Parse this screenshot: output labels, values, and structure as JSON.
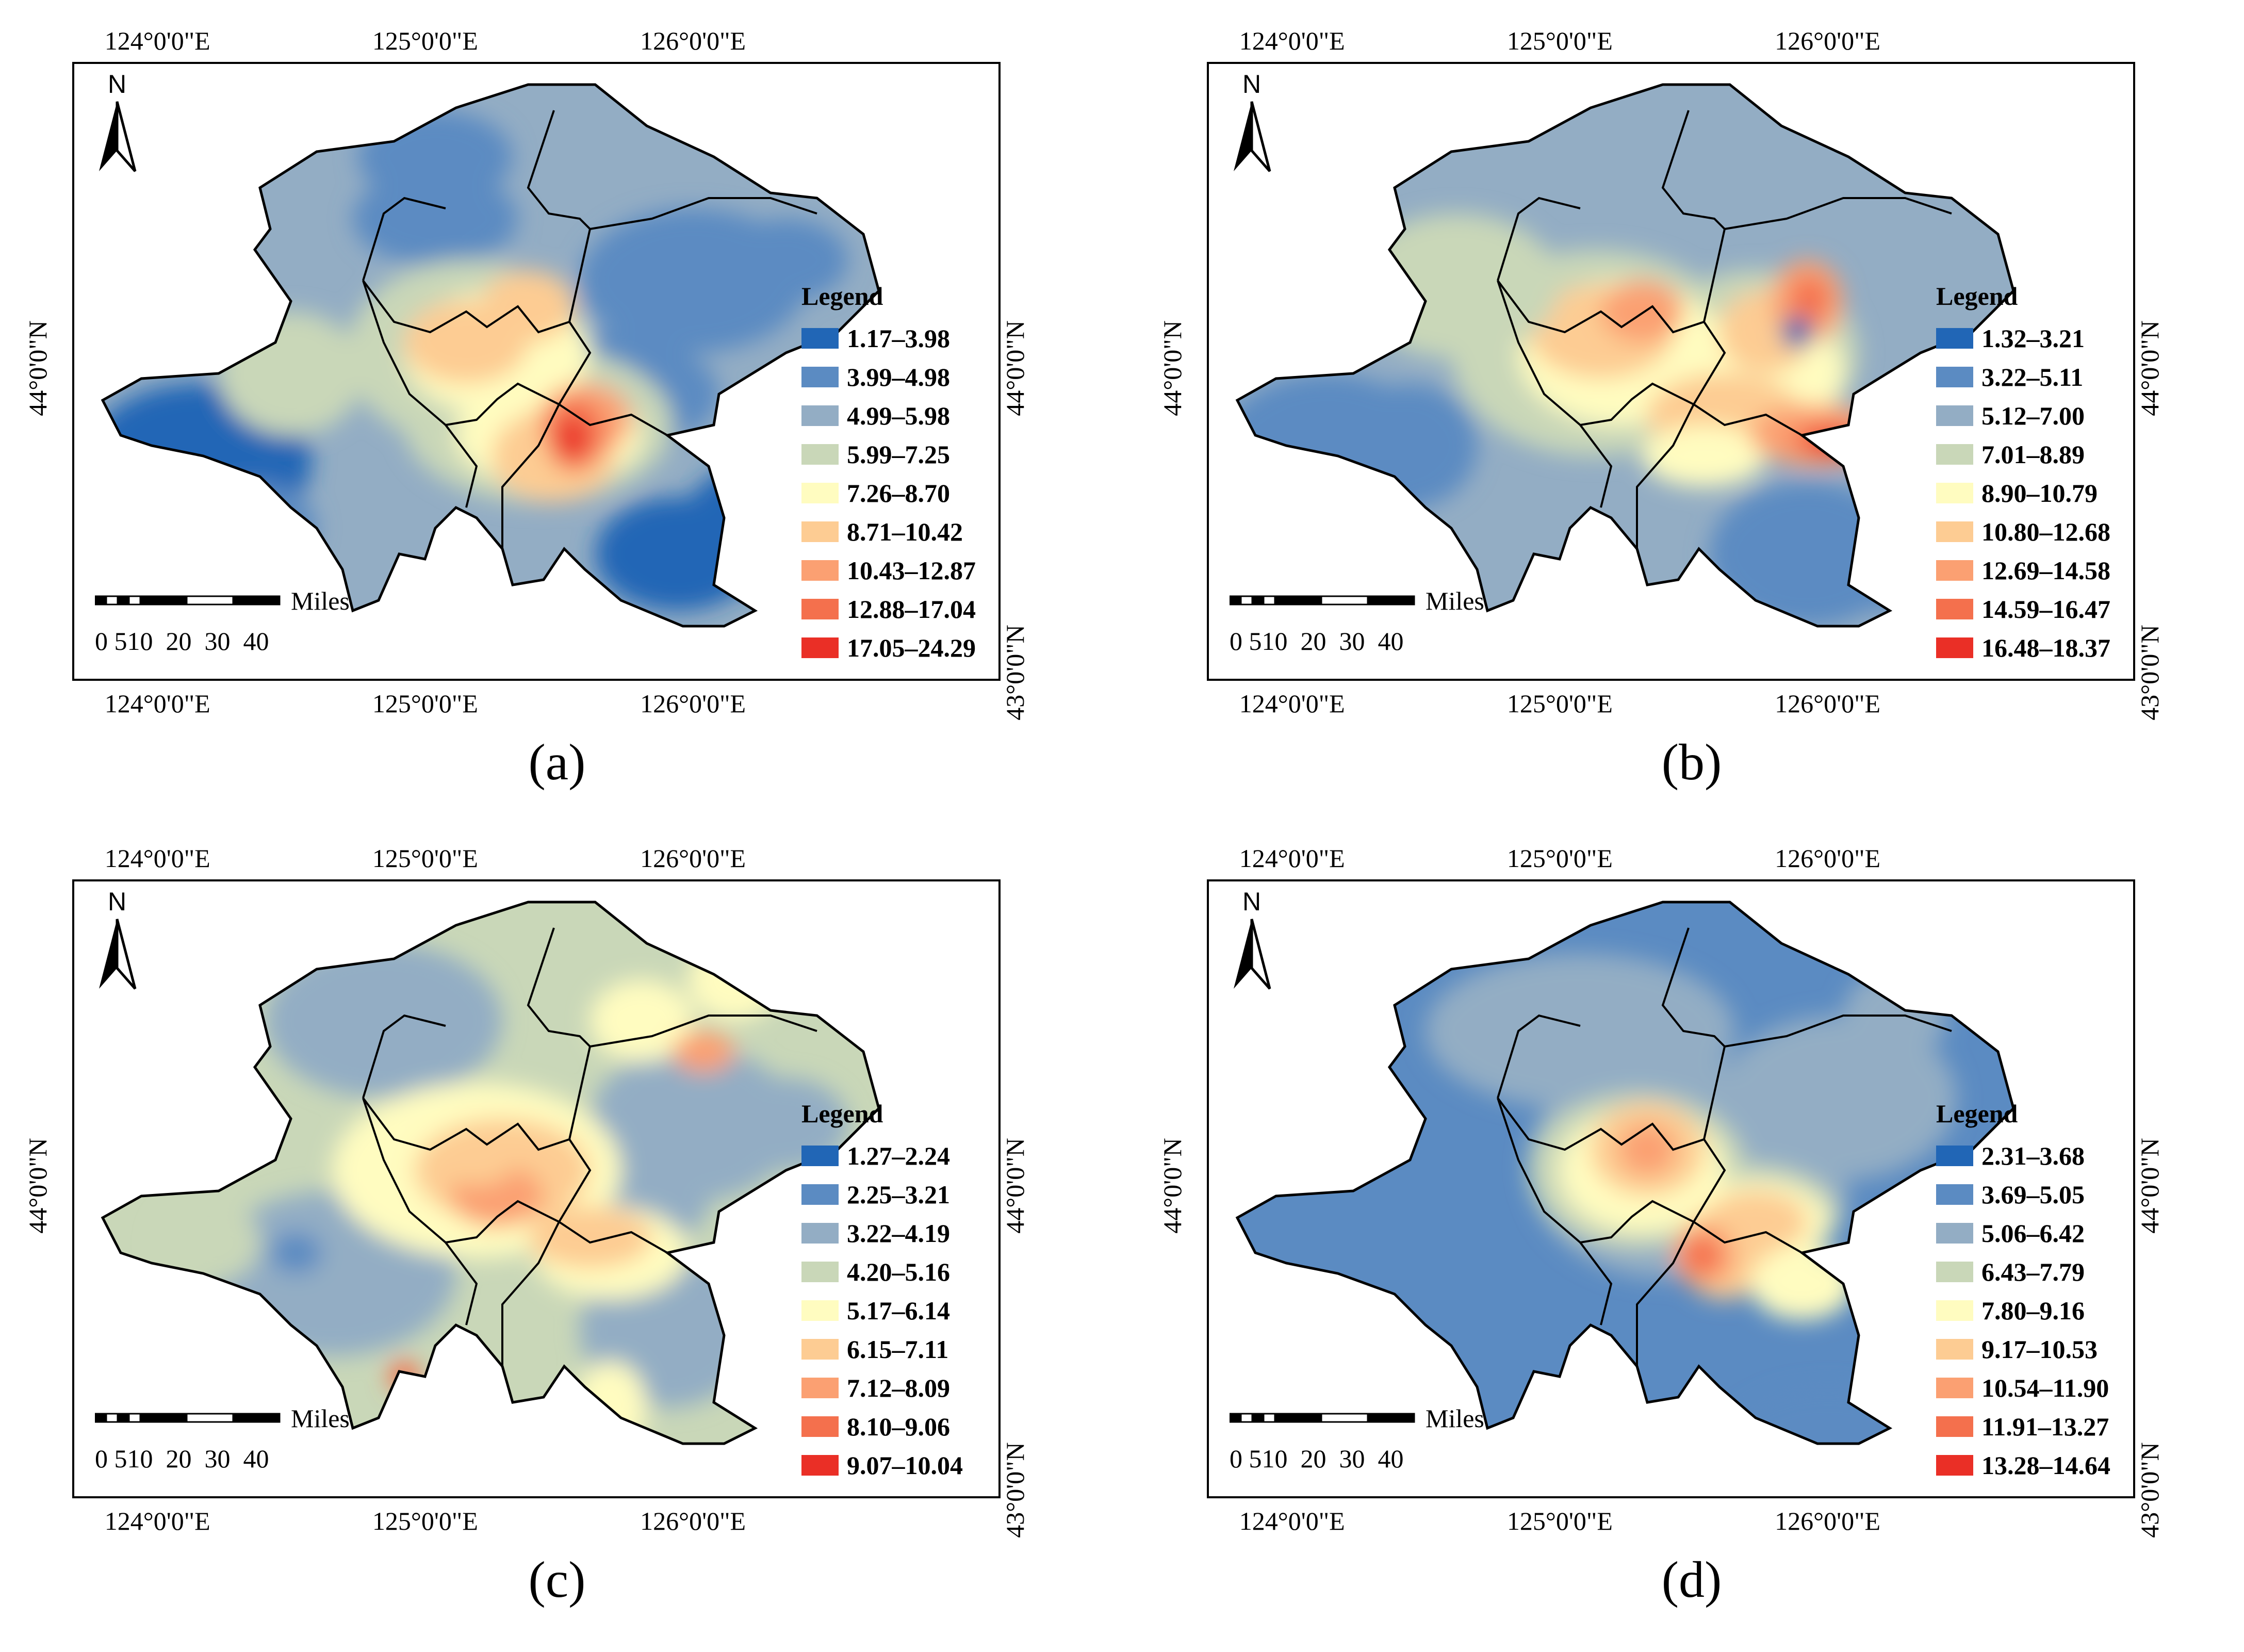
{
  "axes": {
    "longitude_labels": [
      "124°0'0\"E",
      "125°0'0\"E",
      "126°0'0\"E"
    ],
    "latitude_labels": [
      "44°0'0\"N",
      "43°0'0\"N"
    ]
  },
  "north_arrow": {
    "letter": "N",
    "icon": "north-arrow-icon"
  },
  "scalebar": {
    "unit": "Miles",
    "ticks": "0 510  20  30  40"
  },
  "legend_title": "Legend",
  "class_colors": [
    "#2166b6",
    "#5b8bc2",
    "#93adc4",
    "#c9d7b8",
    "#fffcc0",
    "#fdcc93",
    "#fba072",
    "#f4704d",
    "#ea2f26"
  ],
  "panels": [
    {
      "caption": "(a)",
      "legend": [
        "1.17–3.98",
        "3.99–4.98",
        "4.99–5.98",
        "5.99–7.25",
        "7.26–8.70",
        "8.71–10.42",
        "10.43–12.87",
        "12.88–17.04",
        "17.05–24.29"
      ]
    },
    {
      "caption": "(b)",
      "legend": [
        "1.32–3.21",
        "3.22–5.11",
        "5.12–7.00",
        "7.01–8.89",
        "8.90–10.79",
        "10.80–12.68",
        "12.69–14.58",
        "14.59–16.47",
        "16.48–18.37"
      ]
    },
    {
      "caption": "(c)",
      "legend": [
        "1.27–2.24",
        "2.25–3.21",
        "3.22–4.19",
        "4.20–5.16",
        "5.17–6.14",
        "6.15–7.11",
        "7.12–8.09",
        "8.10–9.06",
        "9.07–10.04"
      ]
    },
    {
      "caption": "(d)",
      "legend": [
        "2.31–3.68",
        "3.69–5.05",
        "5.06–6.42",
        "6.43–7.79",
        "7.80–9.16",
        "9.17–10.53",
        "10.54–11.90",
        "11.91–13.27",
        "13.28–14.64"
      ]
    }
  ]
}
